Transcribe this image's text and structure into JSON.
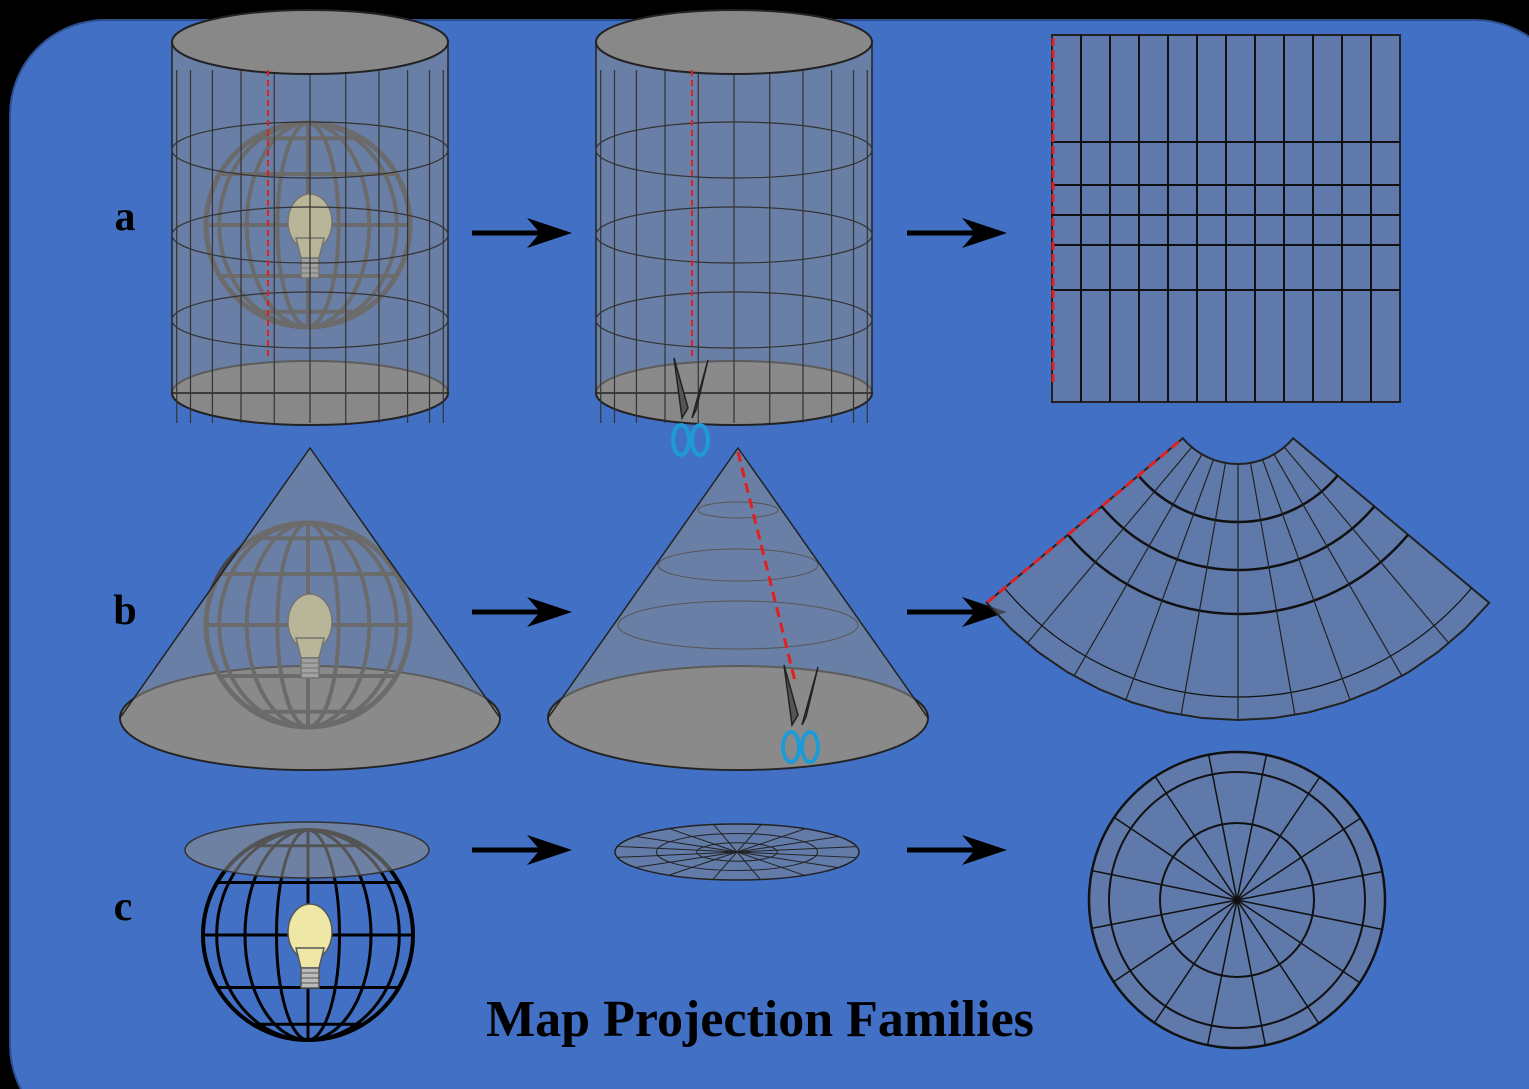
{
  "labels": {
    "a": "a",
    "b": "b",
    "c": "c"
  },
  "title": "Map Projection Families"
}
